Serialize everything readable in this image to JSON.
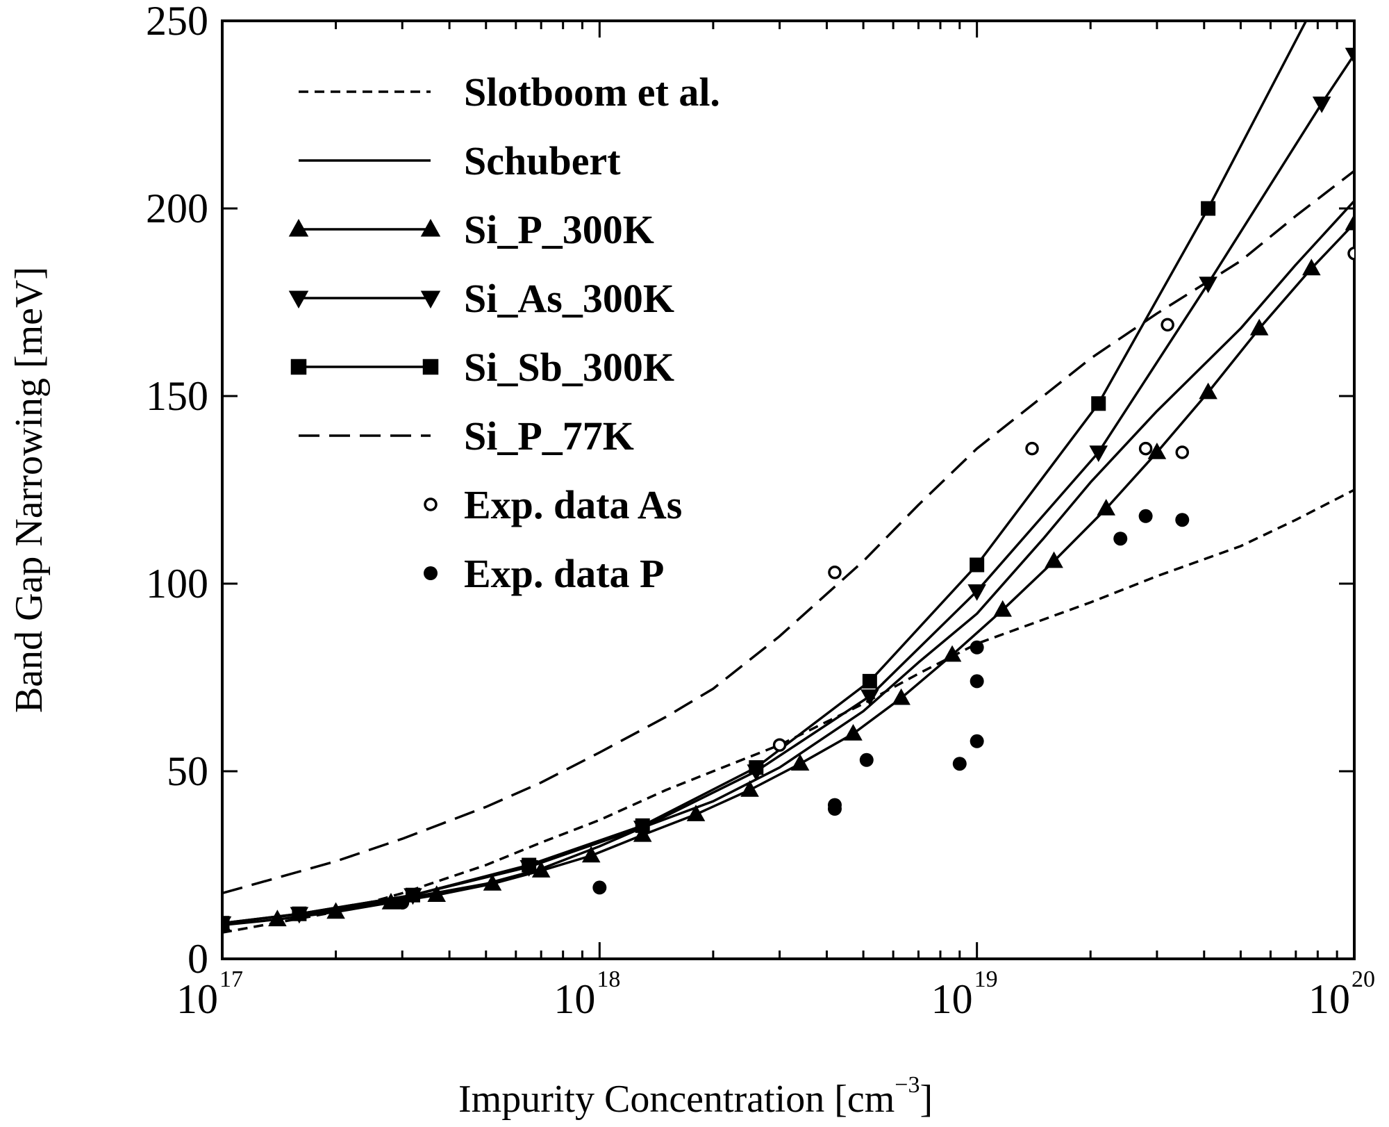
{
  "chart_data": {
    "type": "line",
    "title": "",
    "xlabel": "Impurity Concentration [cm",
    "xlabel_unit_exponent": "−3",
    "xlabel_close": "]",
    "ylabel": "Band Gap Narrowing [meV]",
    "xscale": "log",
    "xlim": [
      1e+17,
      1e+20
    ],
    "ylim": [
      0,
      250
    ],
    "grid": false,
    "legend_position": "top-left",
    "x_tick_labels": [
      {
        "value": 1e+17,
        "base": "10",
        "exp": "17"
      },
      {
        "value": 1e+18,
        "base": "10",
        "exp": "18"
      },
      {
        "value": 1e+19,
        "base": "10",
        "exp": "19"
      },
      {
        "value": 1e+20,
        "base": "10",
        "exp": "20"
      }
    ],
    "y_tick_labels": [
      {
        "value": 0,
        "label": "0"
      },
      {
        "value": 50,
        "label": "50"
      },
      {
        "value": 100,
        "label": "100"
      },
      {
        "value": 150,
        "label": "150"
      },
      {
        "value": 200,
        "label": "200"
      },
      {
        "value": 250,
        "label": "250"
      }
    ],
    "series": [
      {
        "name": "Slotboom et al.",
        "style": "short-dash",
        "marker": "none",
        "x": [
          1e+17,
          2e+17,
          3e+17,
          5e+17,
          7e+17,
          1e+18,
          1.5e+18,
          2e+18,
          3e+18,
          5e+18,
          7e+18,
          1e+19,
          2e+19,
          3e+19,
          5e+19,
          7e+19,
          1e+20
        ],
        "y": [
          7,
          12.5,
          17.5,
          25,
          31,
          37,
          45,
          50,
          57,
          68,
          76,
          84,
          95,
          102,
          110,
          117,
          125
        ]
      },
      {
        "name": "Schubert",
        "style": "solid",
        "marker": "none",
        "x": [
          1e+17,
          2e+17,
          3e+17,
          5e+17,
          7e+17,
          1e+18,
          1.3e+18,
          2e+18,
          3e+18,
          5e+18,
          7e+18,
          1e+19,
          1.5e+19,
          2e+19,
          3e+19,
          5e+19,
          7e+19,
          1e+20
        ],
        "y": [
          9.5,
          13,
          16,
          20,
          24,
          30,
          35,
          42,
          51,
          66,
          79,
          92,
          112,
          127,
          146,
          168,
          185,
          202
        ]
      },
      {
        "name": "Si_P_300K",
        "style": "solid",
        "marker": "triangle-up",
        "x": [
          1e+17,
          1.4e+17,
          2e+17,
          2.8e+17,
          3.7e+17,
          5.2e+17,
          7e+17,
          9.5e+17,
          1.3e+18,
          1.8e+18,
          2.5e+18,
          3.4e+18,
          4.7e+18,
          6.3e+18,
          8.6e+18,
          1.17e+19,
          1.6e+19,
          2.2e+19,
          3e+19,
          4.1e+19,
          5.6e+19,
          7.7e+19,
          1e+20
        ],
        "y": [
          9,
          10.5,
          12.5,
          15,
          17,
          20,
          23.5,
          27.5,
          33,
          38.5,
          45,
          52,
          60,
          69.5,
          81,
          93,
          106,
          120,
          135,
          151,
          168,
          184,
          196
        ]
      },
      {
        "name": "Si_As_300K",
        "style": "solid",
        "marker": "triangle-down",
        "x": [
          1e+17,
          1.6e+17,
          3.2e+17,
          6.5e+17,
          1.3e+18,
          2.6e+18,
          5.2e+18,
          1e+19,
          2.1e+19,
          4.1e+19,
          8.2e+19,
          1e+20
        ],
        "y": [
          9.5,
          12,
          17,
          24.5,
          35,
          50,
          70,
          98,
          135,
          180,
          228,
          241
        ]
      },
      {
        "name": "Si_Sb_300K",
        "style": "solid",
        "marker": "square",
        "x": [
          1e+17,
          1.6e+17,
          3.2e+17,
          6.5e+17,
          1.3e+18,
          2.6e+18,
          5.2e+18,
          1e+19,
          2.1e+19,
          4.1e+19,
          8.2e+19
        ],
        "y": [
          9.5,
          12,
          17,
          25,
          35.5,
          51,
          74,
          105,
          148,
          200,
          258
        ]
      },
      {
        "name": "Si_P_77K",
        "style": "long-dash",
        "marker": "none",
        "x": [
          1e+17,
          2e+17,
          3e+17,
          5e+17,
          7e+17,
          1e+18,
          1.5e+18,
          2e+18,
          3e+18,
          5e+18,
          7e+18,
          1e+19,
          1.5e+19,
          2e+19,
          3e+19,
          5e+19,
          7e+19,
          1e+20
        ],
        "y": [
          17.5,
          26,
          32,
          40.5,
          47,
          55,
          64.5,
          72,
          86,
          106,
          121,
          136,
          150,
          160,
          172,
          186,
          198,
          210
        ]
      },
      {
        "name": "Exp. data As",
        "style": "none",
        "marker": "open-circle",
        "x": [
          3e+18,
          4.2e+18,
          1.4e+19,
          2.8e+19,
          3.2e+19,
          3.5e+19,
          1e+20
        ],
        "y": [
          57,
          103,
          136,
          136,
          169,
          135,
          188
        ]
      },
      {
        "name": "Exp. data P",
        "style": "none",
        "marker": "filled-circle",
        "x": [
          3e+17,
          1e+18,
          4.2e+18,
          4.2e+18,
          5.1e+18,
          9e+18,
          1e+19,
          1e+19,
          1e+19,
          2.4e+19,
          2.8e+19,
          3.5e+19
        ],
        "y": [
          15,
          19,
          40,
          41,
          53,
          52,
          58,
          74,
          83,
          112,
          118,
          117
        ]
      }
    ]
  }
}
